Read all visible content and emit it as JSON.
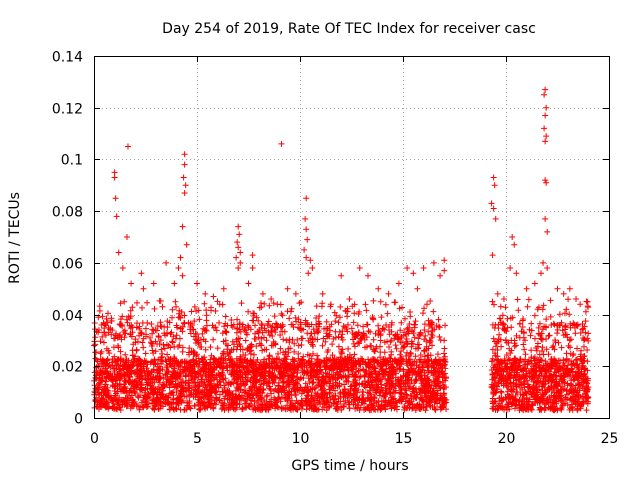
{
  "chart_data": {
    "type": "scatter",
    "title": "Day 254 of 2019, Rate Of TEC Index for receiver casc",
    "xlabel": "GPS time / hours",
    "ylabel": "ROTI / TECUs",
    "xlim": [
      0,
      25
    ],
    "ylim": [
      0,
      0.14
    ],
    "xticks": [
      0,
      5,
      10,
      15,
      20,
      25
    ],
    "xtick_labels": [
      "0",
      "5",
      "10",
      "15",
      "20",
      "25"
    ],
    "yticks": [
      0,
      0.02,
      0.04,
      0.06,
      0.08,
      0.1,
      0.12,
      0.14
    ],
    "ytick_labels": [
      "0",
      "0.02",
      "0.04",
      "0.06",
      "0.08",
      "0.1",
      "0.12",
      "0.14"
    ],
    "grid": true,
    "marker": "+",
    "color": "#ff0000",
    "data_gap_hours": [
      17.1,
      19.3
    ],
    "series": [
      {
        "name": "ROTI",
        "points": [
          [
            1.0,
            0.095
          ],
          [
            1.0,
            0.093
          ],
          [
            1.05,
            0.085
          ],
          [
            1.1,
            0.078
          ],
          [
            1.2,
            0.064
          ],
          [
            1.65,
            0.105
          ],
          [
            1.6,
            0.07
          ],
          [
            1.4,
            0.058
          ],
          [
            1.8,
            0.052
          ],
          [
            2.3,
            0.056
          ],
          [
            2.4,
            0.05
          ],
          [
            2.9,
            0.052
          ],
          [
            3.5,
            0.06
          ],
          [
            3.9,
            0.052
          ],
          [
            4.4,
            0.102
          ],
          [
            4.4,
            0.098
          ],
          [
            4.35,
            0.093
          ],
          [
            4.45,
            0.09
          ],
          [
            4.4,
            0.087
          ],
          [
            4.3,
            0.074
          ],
          [
            4.5,
            0.067
          ],
          [
            4.2,
            0.062
          ],
          [
            4.1,
            0.058
          ],
          [
            4.3,
            0.055
          ],
          [
            5.0,
            0.052
          ],
          [
            5.4,
            0.048
          ],
          [
            5.8,
            0.047
          ],
          [
            6.3,
            0.05
          ],
          [
            7.0,
            0.074
          ],
          [
            7.05,
            0.071
          ],
          [
            6.95,
            0.068
          ],
          [
            7.0,
            0.066
          ],
          [
            7.1,
            0.064
          ],
          [
            6.9,
            0.062
          ],
          [
            7.1,
            0.06
          ],
          [
            7.0,
            0.058
          ],
          [
            7.5,
            0.052
          ],
          [
            7.7,
            0.058
          ],
          [
            7.7,
            0.063
          ],
          [
            8.2,
            0.048
          ],
          [
            8.6,
            0.046
          ],
          [
            8.9,
            0.044
          ],
          [
            9.1,
            0.106
          ],
          [
            9.4,
            0.05
          ],
          [
            9.8,
            0.048
          ],
          [
            10.3,
            0.085
          ],
          [
            10.25,
            0.077
          ],
          [
            10.3,
            0.073
          ],
          [
            10.35,
            0.069
          ],
          [
            10.2,
            0.065
          ],
          [
            10.3,
            0.062
          ],
          [
            10.5,
            0.061
          ],
          [
            10.6,
            0.058
          ],
          [
            10.4,
            0.056
          ],
          [
            11.1,
            0.048
          ],
          [
            11.5,
            0.044
          ],
          [
            12.0,
            0.055
          ],
          [
            12.4,
            0.046
          ],
          [
            12.9,
            0.058
          ],
          [
            13.3,
            0.055
          ],
          [
            13.8,
            0.05
          ],
          [
            14.3,
            0.048
          ],
          [
            14.8,
            0.052
          ],
          [
            15.2,
            0.058
          ],
          [
            15.5,
            0.056
          ],
          [
            15.7,
            0.05
          ],
          [
            16.0,
            0.058
          ],
          [
            16.5,
            0.06
          ],
          [
            16.8,
            0.055
          ],
          [
            17.0,
            0.061
          ],
          [
            17.0,
            0.057
          ],
          [
            19.4,
            0.093
          ],
          [
            19.45,
            0.09
          ],
          [
            19.3,
            0.083
          ],
          [
            19.4,
            0.081
          ],
          [
            19.5,
            0.077
          ],
          [
            19.35,
            0.063
          ],
          [
            19.6,
            0.048
          ],
          [
            19.9,
            0.046
          ],
          [
            20.3,
            0.07
          ],
          [
            20.4,
            0.067
          ],
          [
            20.2,
            0.058
          ],
          [
            20.5,
            0.056
          ],
          [
            21.0,
            0.05
          ],
          [
            21.4,
            0.052
          ],
          [
            21.9,
            0.127
          ],
          [
            21.85,
            0.125
          ],
          [
            21.95,
            0.12
          ],
          [
            21.9,
            0.117
          ],
          [
            21.85,
            0.112
          ],
          [
            21.95,
            0.109
          ],
          [
            21.9,
            0.107
          ],
          [
            21.9,
            0.092
          ],
          [
            21.95,
            0.091
          ],
          [
            21.9,
            0.077
          ],
          [
            22.0,
            0.072
          ],
          [
            21.8,
            0.06
          ],
          [
            22.0,
            0.058
          ],
          [
            21.7,
            0.056
          ],
          [
            22.5,
            0.05
          ],
          [
            22.8,
            0.048
          ],
          [
            23.1,
            0.05
          ],
          [
            23.4,
            0.046
          ],
          [
            23.6,
            0.044
          ]
        ]
      }
    ]
  }
}
